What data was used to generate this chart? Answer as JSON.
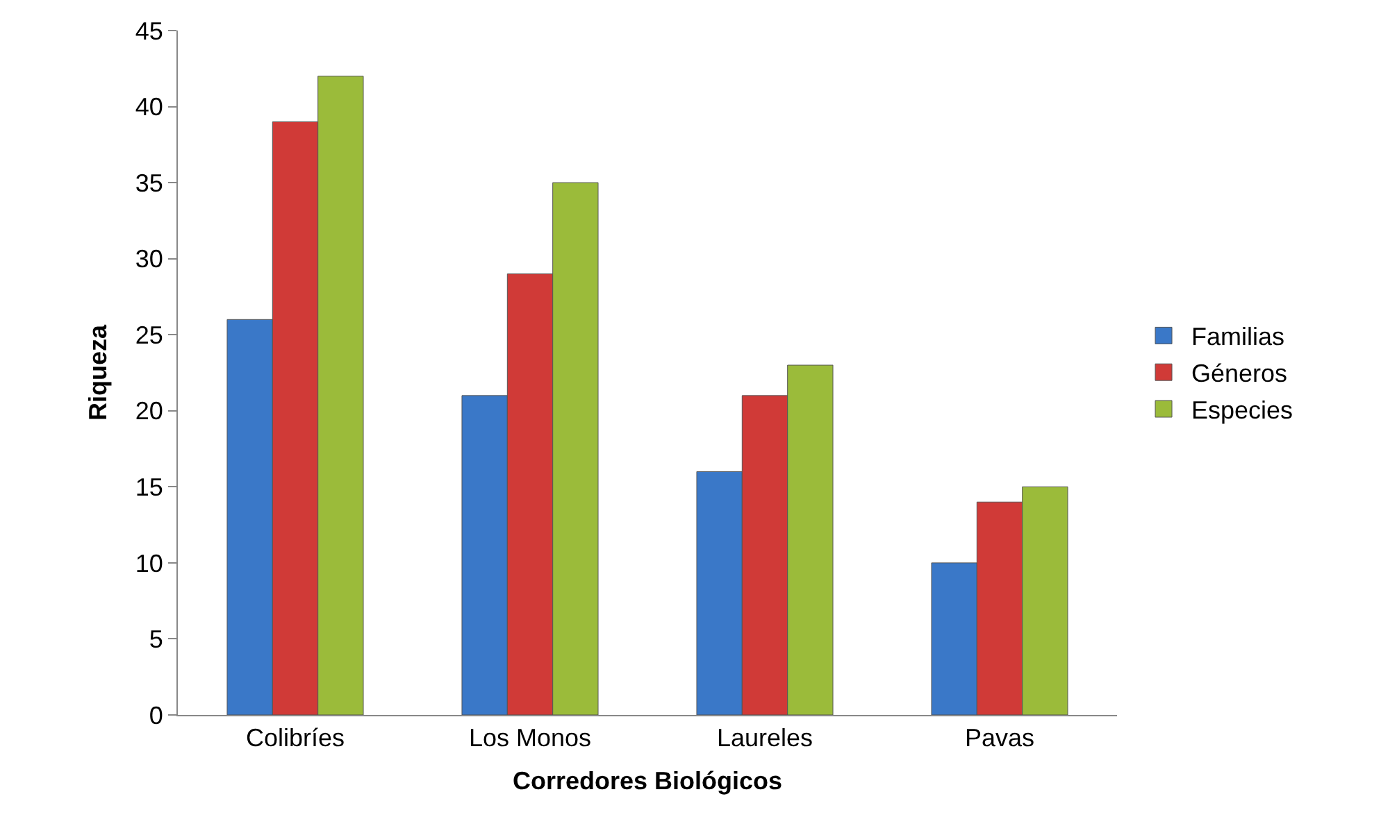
{
  "chart_data": {
    "type": "bar",
    "xlabel": "Corredores Biológicos",
    "ylabel": "Riqueza",
    "categories": [
      "Colibríes",
      "Los Monos",
      "Laureles",
      "Pavas"
    ],
    "series": [
      {
        "name": "Familias",
        "color": "#3a78c8",
        "values": [
          26,
          21,
          16,
          10
        ]
      },
      {
        "name": "Géneros",
        "color": "#d03a37",
        "values": [
          39,
          29,
          21,
          14
        ]
      },
      {
        "name": "Especies",
        "color": "#9bbb3a",
        "values": [
          42,
          35,
          23,
          15
        ]
      }
    ],
    "ylim": [
      0,
      45
    ],
    "yticks": [
      0,
      5,
      10,
      15,
      20,
      25,
      30,
      35,
      40,
      45
    ],
    "grid": false,
    "legend": "right"
  }
}
